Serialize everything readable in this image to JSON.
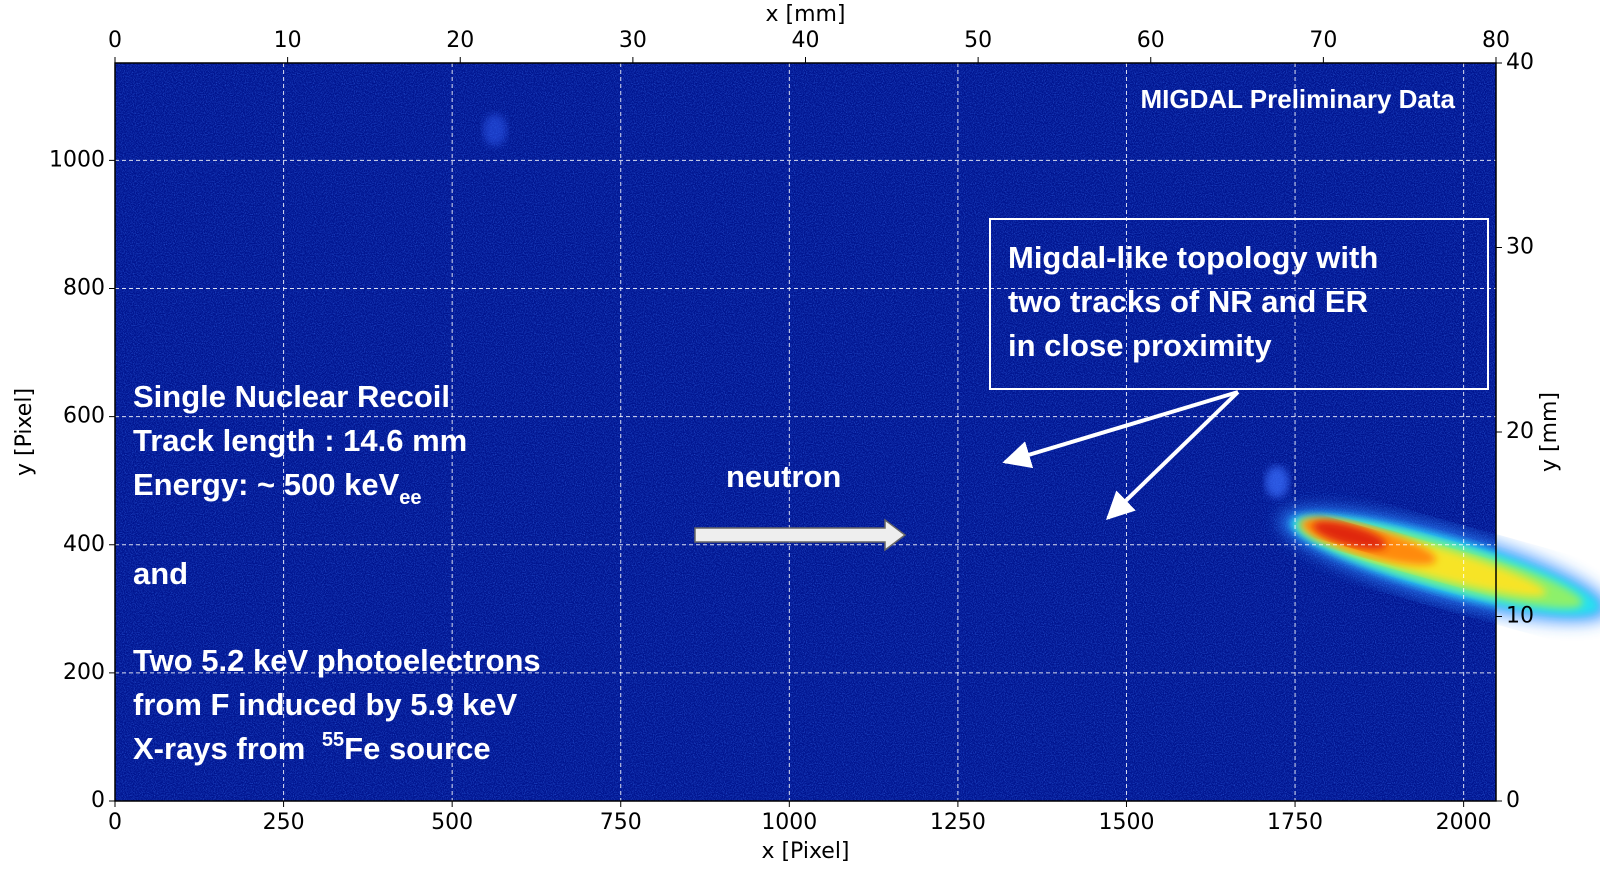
{
  "chart_data": {
    "type": "image",
    "xlabel": "x [Pixel]",
    "ylabel": "y [Pixel]",
    "x2label": "x [mm]",
    "y2label": "y [mm]",
    "xlim": [
      0,
      2048
    ],
    "ylim": [
      0,
      1152
    ],
    "xticks": [
      0,
      250,
      500,
      750,
      1000,
      1250,
      1500,
      1750,
      2000
    ],
    "yticks": [
      0,
      200,
      400,
      600,
      800,
      1000
    ],
    "x2lim": [
      0,
      80
    ],
    "x2ticks": [
      0,
      10,
      20,
      30,
      40,
      50,
      60,
      70,
      80
    ],
    "y2lim": [
      0,
      40
    ],
    "y2ticks": [
      0,
      10,
      20,
      30,
      40
    ],
    "grid": true,
    "background_color": "#00148f",
    "watermark": "MIGDAL Preliminary Data",
    "arrow_label": "neutron",
    "box_text": [
      "Migdal-like topology with",
      "two tracks of NR and ER",
      "in close proximity"
    ],
    "left_text": [
      "Single Nuclear Recoil",
      "Track length : 14.6 mm",
      {
        "text": "Energy: ~ 500 keV",
        "subscript": "ee"
      },
      "and",
      "Two 5.2 keV photoelectrons",
      "from F induced by 5.9 keV",
      {
        "text": "X-rays from ",
        "superscript": "55",
        "after": "Fe source"
      }
    ]
  }
}
